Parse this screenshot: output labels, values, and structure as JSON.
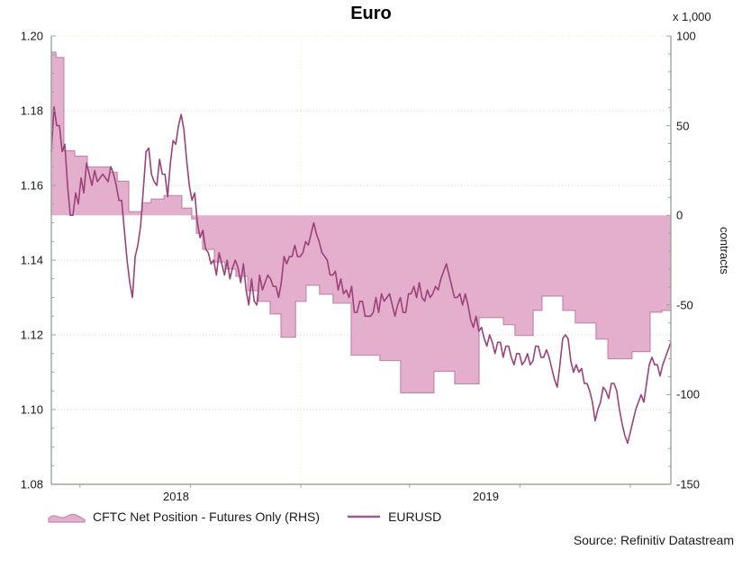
{
  "title": "Euro",
  "source": "Source: Refinitiv Datastream",
  "colors": {
    "area_fill": "#e4aecd",
    "area_edge": "#c487ae",
    "line": "#9c4279",
    "grid": "#c6d2c6",
    "grid_accent": "#efe6bc",
    "axis": "#9aa79c",
    "text": "#1a1a1a"
  },
  "chart_data": {
    "type": "combo",
    "title": "Euro",
    "subtitle": "",
    "grid": "dotted",
    "legend_position": "bottom",
    "x_axis": {
      "min": 2018.243,
      "max": 2020.123,
      "tick_positions": [
        2018.33,
        2018.665,
        2019.0,
        2019.33,
        2019.665,
        2020.0
      ],
      "gridlines": [
        2019.0
      ],
      "year_labels": [
        {
          "text": "2018",
          "t": 2018.6215
        },
        {
          "text": "2019",
          "t": 2019.5615
        }
      ]
    },
    "left_axis": {
      "series": "EURUSD",
      "min": 1.08,
      "max": 1.2,
      "tick_labels": [
        "1.20",
        "1.18",
        "1.16",
        "1.14",
        "1.12",
        "1.10",
        "1.08"
      ],
      "minor_step": 0.005,
      "gridline_values": [
        1.2,
        1.18,
        1.16,
        1.14,
        1.12,
        1.1
      ]
    },
    "right_axis": {
      "series": "CFTC Net Position - Futures Only (RHS)",
      "multiplier_label": "x 1,000",
      "unit": "contracts",
      "min": -150,
      "max": 100,
      "tick_labels": [
        "100",
        "50",
        "0",
        "-50",
        "-100",
        "-150"
      ],
      "minor_step": 10
    },
    "series": [
      {
        "name": "CFTC Net Position - Futures Only (RHS)",
        "type": "step-area",
        "axis": "right",
        "baseline": 0,
        "points": [
          [
            2018.243,
            91
          ],
          [
            2018.257,
            88
          ],
          [
            2018.281,
            36
          ],
          [
            2018.314,
            33
          ],
          [
            2018.352,
            27
          ],
          [
            2018.421,
            24
          ],
          [
            2018.443,
            19
          ],
          [
            2018.478,
            2
          ],
          [
            2018.519,
            7
          ],
          [
            2018.546,
            9
          ],
          [
            2018.585,
            11
          ],
          [
            2018.639,
            4
          ],
          [
            2018.669,
            -2
          ],
          [
            2018.683,
            -10
          ],
          [
            2018.702,
            -19
          ],
          [
            2018.738,
            -26
          ],
          [
            2018.77,
            -30
          ],
          [
            2018.803,
            -34
          ],
          [
            2018.839,
            -42
          ],
          [
            2018.872,
            -48
          ],
          [
            2018.907,
            -55
          ],
          [
            2018.94,
            -68
          ],
          [
            2018.984,
            -48
          ],
          [
            2019.016,
            -39
          ],
          [
            2019.057,
            -44
          ],
          [
            2019.098,
            -49
          ],
          [
            2019.153,
            -78
          ],
          [
            2019.24,
            -81
          ],
          [
            2019.303,
            -99
          ],
          [
            2019.404,
            -87
          ],
          [
            2019.467,
            -94
          ],
          [
            2019.541,
            -57
          ],
          [
            2019.615,
            -61
          ],
          [
            2019.65,
            -67
          ],
          [
            2019.705,
            -53
          ],
          [
            2019.732,
            -45
          ],
          [
            2019.795,
            -53
          ],
          [
            2019.833,
            -60
          ],
          [
            2019.896,
            -69
          ],
          [
            2019.932,
            -80
          ],
          [
            2020.005,
            -76
          ],
          [
            2020.06,
            -54
          ],
          [
            2020.096,
            -53
          ]
        ]
      },
      {
        "name": "EURUSD",
        "type": "line",
        "axis": "left",
        "x_start": 2018.243,
        "x_step": 0.00821,
        "values": [
          1.169,
          1.181,
          1.176,
          1.176,
          1.169,
          1.171,
          1.16,
          1.152,
          1.152,
          1.158,
          1.155,
          1.162,
          1.158,
          1.166,
          1.163,
          1.16,
          1.164,
          1.161,
          1.162,
          1.163,
          1.162,
          1.161,
          1.165,
          1.163,
          1.16,
          1.156,
          1.156,
          1.148,
          1.14,
          1.134,
          1.13,
          1.141,
          1.144,
          1.149,
          1.159,
          1.169,
          1.17,
          1.163,
          1.161,
          1.16,
          1.167,
          1.163,
          1.163,
          1.157,
          1.166,
          1.172,
          1.171,
          1.176,
          1.179,
          1.175,
          1.167,
          1.16,
          1.156,
          1.158,
          1.15,
          1.146,
          1.148,
          1.143,
          1.142,
          1.139,
          1.14,
          1.136,
          1.142,
          1.139,
          1.136,
          1.14,
          1.135,
          1.138,
          1.14,
          1.138,
          1.134,
          1.139,
          1.132,
          1.128,
          1.135,
          1.129,
          1.128,
          1.136,
          1.132,
          1.134,
          1.136,
          1.135,
          1.133,
          1.133,
          1.13,
          1.134,
          1.141,
          1.139,
          1.141,
          1.141,
          1.144,
          1.141,
          1.141,
          1.142,
          1.145,
          1.144,
          1.147,
          1.15,
          1.147,
          1.145,
          1.142,
          1.141,
          1.14,
          1.136,
          1.136,
          1.137,
          1.132,
          1.135,
          1.131,
          1.132,
          1.13,
          1.133,
          1.126,
          1.126,
          1.129,
          1.129,
          1.125,
          1.125,
          1.125,
          1.126,
          1.13,
          1.126,
          1.131,
          1.129,
          1.13,
          1.131,
          1.128,
          1.125,
          1.128,
          1.13,
          1.126,
          1.126,
          1.131,
          1.131,
          1.133,
          1.13,
          1.134,
          1.13,
          1.129,
          1.132,
          1.13,
          1.131,
          1.133,
          1.132,
          1.135,
          1.137,
          1.139,
          1.136,
          1.133,
          1.13,
          1.13,
          1.131,
          1.128,
          1.131,
          1.128,
          1.124,
          1.122,
          1.125,
          1.121,
          1.122,
          1.119,
          1.117,
          1.12,
          1.118,
          1.115,
          1.118,
          1.118,
          1.114,
          1.117,
          1.117,
          1.114,
          1.112,
          1.115,
          1.115,
          1.112,
          1.113,
          1.115,
          1.112,
          1.113,
          1.117,
          1.117,
          1.114,
          1.114,
          1.116,
          1.114,
          1.111,
          1.108,
          1.106,
          1.112,
          1.119,
          1.12,
          1.119,
          1.113,
          1.11,
          1.112,
          1.11,
          1.111,
          1.107,
          1.107,
          1.105,
          1.102,
          1.097,
          1.1,
          1.102,
          1.106,
          1.105,
          1.103,
          1.107,
          1.107,
          1.105,
          1.1,
          1.096,
          1.093,
          1.091,
          1.094,
          1.097,
          1.1,
          1.102,
          1.104,
          1.102,
          1.107,
          1.112,
          1.114,
          1.112,
          1.112,
          1.109,
          1.112,
          1.114,
          1.116,
          1.118
        ]
      }
    ]
  }
}
